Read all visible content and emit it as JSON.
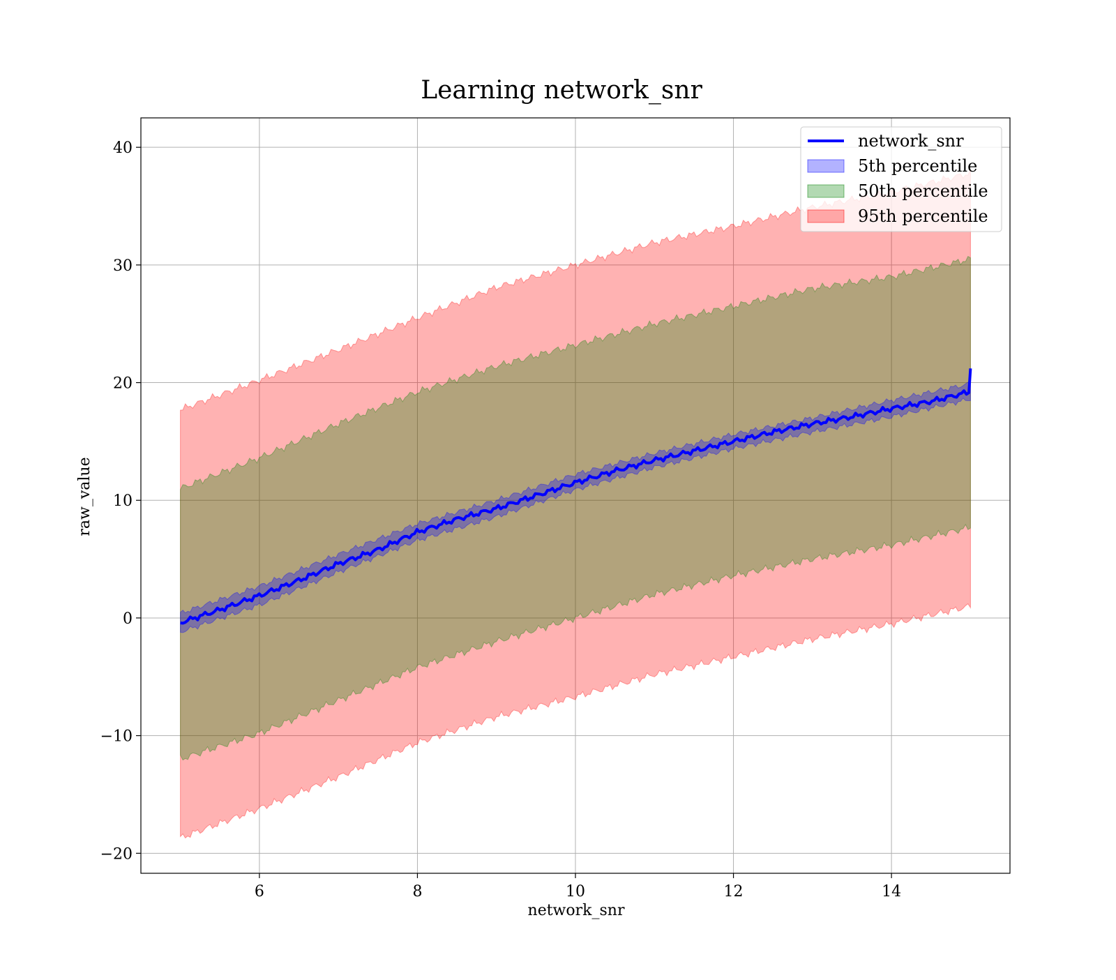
{
  "chart_data": {
    "type": "area",
    "title": "Learning network_snr",
    "xlabel": "network_snr",
    "ylabel": "raw_value",
    "xlim": [
      4.5,
      15.5
    ],
    "ylim": [
      -21.7,
      42.5
    ],
    "x_ticks": [
      6,
      8,
      10,
      12,
      14
    ],
    "x_tick_labels": [
      "6",
      "8",
      "10",
      "12",
      "14"
    ],
    "y_ticks": [
      -20,
      -10,
      0,
      10,
      20,
      30,
      40
    ],
    "y_tick_labels": [
      "−20",
      "−10",
      "0",
      "10",
      "20",
      "30",
      "40"
    ],
    "grid": true,
    "legend_position": "upper right",
    "x_range": [
      5.0,
      15.0
    ],
    "line": {
      "name": "network_snr",
      "color": "#0000ff",
      "x": [
        5.0,
        5.5,
        6.0,
        6.5,
        7.0,
        7.5,
        8.0,
        8.5,
        9.0,
        9.5,
        10.0,
        10.5,
        11.0,
        11.5,
        12.0,
        12.5,
        13.0,
        13.5,
        14.0,
        14.5,
        14.98,
        15.0
      ],
      "y": [
        -0.4,
        0.7,
        1.9,
        3.2,
        4.6,
        5.8,
        7.3,
        8.4,
        9.3,
        10.4,
        11.5,
        12.5,
        13.4,
        14.2,
        15.0,
        15.8,
        16.5,
        17.1,
        17.8,
        18.4,
        19.2,
        21.2
      ]
    },
    "bands": [
      {
        "name": "5th percentile",
        "color": "#0000ff",
        "opacity": 0.3,
        "x": [
          5.0,
          6.0,
          7.0,
          8.0,
          9.0,
          10.0,
          11.0,
          12.0,
          13.0,
          14.0,
          15.0
        ],
        "lower": [
          -1.2,
          1.1,
          3.9,
          6.6,
          8.6,
          10.9,
          12.8,
          14.4,
          15.8,
          17.1,
          18.6
        ],
        "upper": [
          0.4,
          2.7,
          5.4,
          8.0,
          10.0,
          12.2,
          14.0,
          15.6,
          17.0,
          18.5,
          19.9
        ]
      },
      {
        "name": "50th percentile",
        "color": "#008000",
        "opacity": 0.3,
        "x": [
          5.0,
          6.0,
          7.0,
          8.0,
          9.0,
          10.0,
          11.0,
          12.0,
          13.0,
          14.0,
          15.0
        ],
        "lower": [
          -12.0,
          -9.8,
          -7.0,
          -4.2,
          -2.0,
          0.0,
          2.0,
          3.6,
          5.0,
          6.2,
          7.7
        ],
        "upper": [
          11.0,
          13.6,
          16.5,
          19.2,
          21.4,
          23.2,
          25.0,
          26.5,
          28.0,
          29.0,
          30.5
        ]
      },
      {
        "name": "95th percentile",
        "color": "#ff0000",
        "opacity": 0.3,
        "x": [
          5.0,
          6.0,
          7.0,
          8.0,
          9.0,
          10.0,
          11.0,
          12.0,
          13.0,
          14.0,
          15.0
        ],
        "lower": [
          -18.7,
          -16.2,
          -13.5,
          -10.6,
          -8.4,
          -6.7,
          -4.8,
          -3.3,
          -1.8,
          -0.5,
          1.0
        ],
        "upper": [
          17.7,
          20.2,
          22.8,
          25.5,
          28.1,
          30.0,
          31.9,
          33.3,
          34.9,
          36.2,
          37.8
        ]
      }
    ]
  }
}
